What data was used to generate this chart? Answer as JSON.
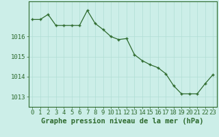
{
  "hours": [
    0,
    1,
    2,
    3,
    4,
    5,
    6,
    7,
    8,
    9,
    10,
    11,
    12,
    13,
    14,
    15,
    16,
    17,
    18,
    19,
    20,
    21,
    22,
    23
  ],
  "pressure": [
    1016.85,
    1016.85,
    1017.1,
    1016.55,
    1016.55,
    1016.55,
    1016.55,
    1017.3,
    1016.65,
    1016.35,
    1016.0,
    1015.85,
    1015.9,
    1015.1,
    1014.8,
    1014.6,
    1014.45,
    1014.15,
    1013.55,
    1013.15,
    1013.15,
    1013.15,
    1013.65,
    1014.1
  ],
  "line_color": "#2d6a2d",
  "marker_color": "#2d6a2d",
  "bg_color": "#cceee8",
  "grid_color": "#b0ddd4",
  "axis_color": "#2d6a2d",
  "xlabel": "Graphe pression niveau de la mer (hPa)",
  "ylim": [
    1012.5,
    1017.75
  ],
  "yticks": [
    1013,
    1014,
    1015,
    1016
  ],
  "xtick_labels": [
    "0",
    "1",
    "2",
    "3",
    "4",
    "5",
    "6",
    "7",
    "8",
    "9",
    "10",
    "11",
    "12",
    "13",
    "14",
    "15",
    "16",
    "17",
    "18",
    "19",
    "20",
    "21",
    "22",
    "23"
  ],
  "xlabel_fontsize": 7.5,
  "tick_fontsize": 6.5
}
